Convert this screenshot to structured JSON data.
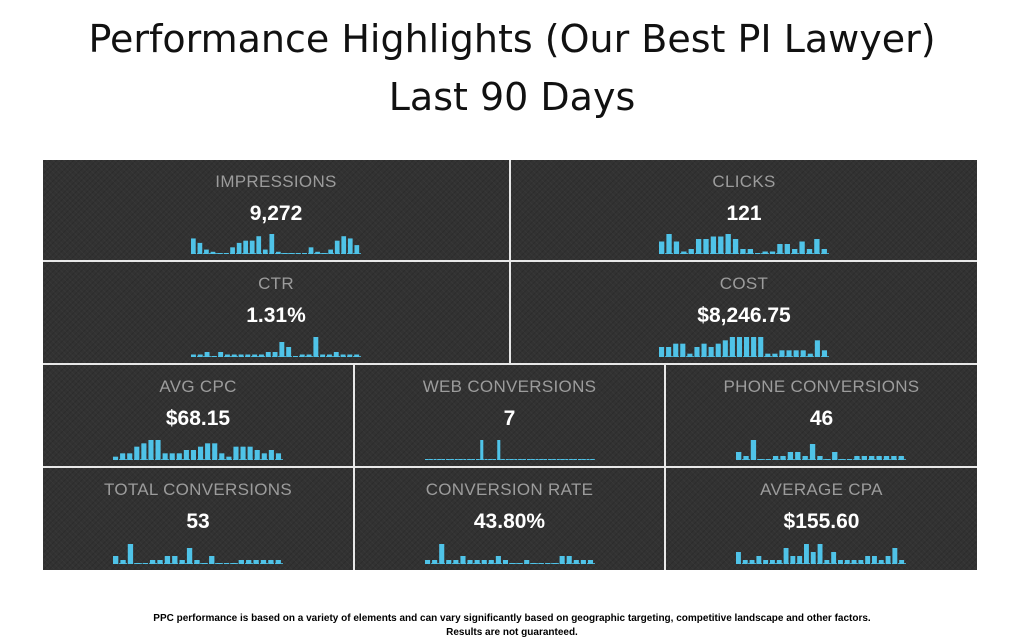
{
  "title": "Performance Highlights (Our Best PI Lawyer)",
  "subtitle": "Last 90 Days",
  "footnote": {
    "line1": "PPC performance is based on a variety of elements and can vary significantly based on geographic targeting, competitive landscape and other factors.",
    "line2": "Results are not guaranteed."
  },
  "colors": {
    "panel": "#323232",
    "bar": "#4fc3e8",
    "label": "#9c9c9c",
    "value": "#ffffff",
    "divider": "#e8e8e8"
  },
  "chart_data": [
    {
      "type": "bar",
      "title": "IMPRESSIONS",
      "value_label": "9,272",
      "values": [
        7,
        5,
        2,
        1,
        0,
        0,
        3,
        5,
        6,
        6,
        8,
        2,
        9,
        1,
        0,
        0,
        0,
        0,
        3,
        1,
        0,
        2,
        6,
        8,
        7,
        4
      ]
    },
    {
      "type": "bar",
      "title": "CLICKS",
      "value_label": "121",
      "values": [
        5,
        8,
        5,
        1,
        2,
        6,
        6,
        7,
        7,
        8,
        6,
        2,
        2,
        0,
        1,
        1,
        4,
        4,
        2,
        5,
        2,
        6,
        2
      ]
    },
    {
      "type": "bar",
      "title": "CTR",
      "value_label": "1.31%",
      "values": [
        1,
        1,
        2,
        0,
        2,
        1,
        1,
        1,
        1,
        1,
        1,
        2,
        2,
        6,
        4,
        0,
        1,
        1,
        8,
        1,
        1,
        2,
        1,
        1,
        1
      ]
    },
    {
      "type": "bar",
      "title": "COST",
      "value_label": "$8,246.75",
      "values": [
        3,
        3,
        4,
        4,
        1,
        3,
        4,
        3,
        4,
        5,
        6,
        6,
        6,
        6,
        6,
        1,
        1,
        2,
        2,
        2,
        2,
        1,
        5,
        2
      ]
    },
    {
      "type": "bar",
      "title": "AVG CPC",
      "value_label": "$68.15",
      "values": [
        1,
        2,
        2,
        4,
        5,
        6,
        6,
        2,
        2,
        2,
        3,
        3,
        4,
        5,
        5,
        2,
        1,
        4,
        4,
        4,
        3,
        2,
        3,
        2
      ]
    },
    {
      "type": "bar",
      "title": "WEB CONVERSIONS",
      "value_label": "7",
      "values": [
        0,
        0,
        0,
        0,
        0,
        0,
        0,
        0,
        0,
        0,
        0,
        0,
        0,
        5,
        0,
        0,
        0,
        5,
        0,
        0,
        0,
        0,
        0,
        0,
        0,
        0,
        0,
        0,
        0,
        0,
        0,
        0,
        0,
        0,
        0,
        0,
        0,
        0,
        0,
        0
      ]
    },
    {
      "type": "bar",
      "title": "PHONE CONVERSIONS",
      "value_label": "46",
      "values": [
        2,
        1,
        5,
        0,
        0,
        1,
        1,
        2,
        2,
        1,
        4,
        1,
        0,
        2,
        0,
        0,
        1,
        1,
        1,
        1,
        1,
        1,
        1
      ]
    },
    {
      "type": "bar",
      "title": "TOTAL CONVERSIONS",
      "value_label": "53",
      "values": [
        2,
        1,
        5,
        0,
        0,
        1,
        1,
        2,
        2,
        1,
        4,
        1,
        0,
        2,
        0,
        0,
        0,
        1,
        1,
        1,
        1,
        1,
        1
      ]
    },
    {
      "type": "bar",
      "title": "CONVERSION RATE",
      "value_label": "43.80%",
      "values": [
        1,
        1,
        5,
        1,
        1,
        2,
        1,
        1,
        1,
        1,
        2,
        1,
        0,
        0,
        1,
        0,
        0,
        0,
        0,
        2,
        2,
        1,
        1,
        1
      ]
    },
    {
      "type": "bar",
      "title": "AVERAGE CPA",
      "value_label": "$155.60",
      "values": [
        3,
        1,
        1,
        2,
        1,
        1,
        1,
        4,
        2,
        2,
        5,
        3,
        5,
        1,
        3,
        1,
        1,
        1,
        1,
        2,
        2,
        1,
        2,
        4,
        1
      ]
    }
  ]
}
